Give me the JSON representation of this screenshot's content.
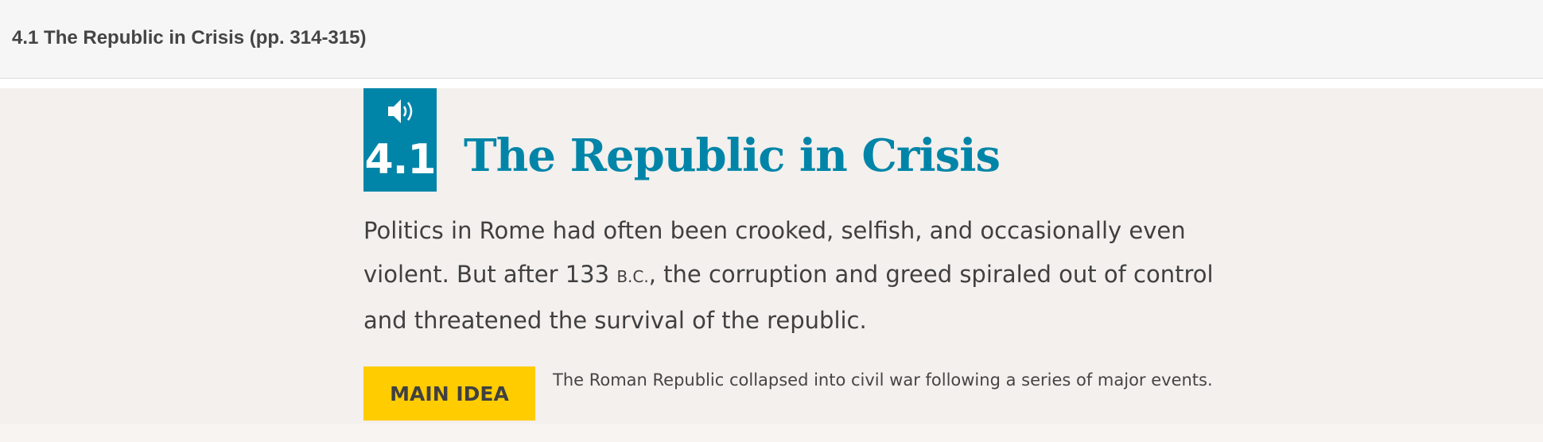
{
  "header": {
    "title": "4.1 The Republic in Crisis (pp. 314-315)"
  },
  "section": {
    "number": "4.1",
    "audio_icon": "speaker-icon",
    "title": "The Republic in Crisis",
    "intro_part1": "Politics in Rome had often been crooked, selfish, and occasionally even violent. But after 133 ",
    "intro_era": "B.C.",
    "intro_part2": ", the corruption and greed spiraled out of control and threatened the survival of the republic.",
    "main_idea_label": "MAIN IDEA",
    "main_idea_text": "The Roman Republic collapsed into civil war following a series of major events."
  },
  "colors": {
    "accent": "#0085a8",
    "main_idea": "#ffcc00",
    "text": "#404040",
    "background": "#f4f0ed"
  }
}
